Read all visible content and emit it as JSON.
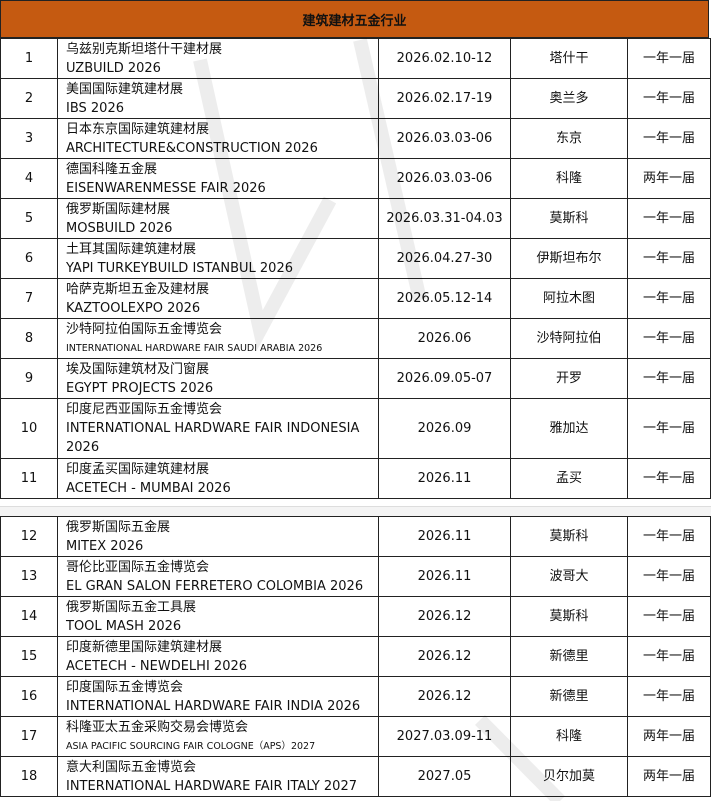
{
  "title": "建筑建材五金行业",
  "header_color": "#C55A11",
  "rows": [
    {
      "no": "1",
      "cn": "乌兹别克斯坦塔什干建材展",
      "en": "UZBUILD 2026",
      "date": "2026.02.10-12",
      "city": "塔什干",
      "freq": "一年一届"
    },
    {
      "no": "2",
      "cn": "美国国际建筑建材展",
      "en": "IBS 2026",
      "date": "2026.02.17-19",
      "city": "奥兰多",
      "freq": "一年一届"
    },
    {
      "no": "3",
      "cn": "日本东京国际建筑建材展",
      "en": "ARCHITECTURE&CONSTRUCTION 2026",
      "date": "2026.03.03-06",
      "city": "东京",
      "freq": "一年一届"
    },
    {
      "no": "4",
      "cn": "德国科隆五金展",
      "en": "EISENWARENMESSE FAIR 2026",
      "date": "2026.03.03-06",
      "city": "科隆",
      "freq": "两年一届"
    },
    {
      "no": "5",
      "cn": "俄罗斯国际建材展",
      "en": "MOSBUILD 2026",
      "date": "2026.03.31-04.03",
      "city": "莫斯科",
      "freq": "一年一届"
    },
    {
      "no": "6",
      "cn": "土耳其国际建筑建材展",
      "en": "YAPI TURKEYBUILD ISTANBUL 2026",
      "date": "2026.04.27-30",
      "city": "伊斯坦布尔",
      "freq": "一年一届"
    },
    {
      "no": "7",
      "cn": "哈萨克斯坦五金及建材展",
      "en": "KAZTOOLEXPO 2026",
      "date": "2026.05.12-14",
      "city": "阿拉木图",
      "freq": "一年一届"
    },
    {
      "no": "8",
      "cn": "沙特阿拉伯国际五金博览会",
      "en": "INTERNATIONAL HARDWARE FAIR SAUDI ARABIA 2026",
      "date": "2026.06",
      "city": "沙特阿拉伯",
      "freq": "一年一届"
    },
    {
      "no": "9",
      "cn": "埃及国际建筑材及门窗展",
      "en": "EGYPT PROJECTS 2026",
      "date": "2026.09.05-07",
      "city": "开罗",
      "freq": "一年一届"
    },
    {
      "no": "10",
      "cn": "印度尼西亚国际五金博览会",
      "en": "INTERNATIONAL HARDWARE FAIR INDONESIA 2026",
      "date": "2026.09",
      "city": "雅加达",
      "freq": "一年一届"
    },
    {
      "no": "11",
      "cn": "印度孟买国际建筑建材展",
      "en": "ACETECH - MUMBAI 2026",
      "date": "2026.11",
      "city": "孟买",
      "freq": "一年一届"
    },
    {
      "no": "12",
      "cn": "俄罗斯国际五金展",
      "en": "MITEX 2026",
      "date": "2026.11",
      "city": "莫斯科",
      "freq": "一年一届"
    },
    {
      "no": "13",
      "cn": "哥伦比亚国际五金博览会",
      "en": "EL GRAN SALON FERRETERO COLOMBIA 2026",
      "date": "2026.11",
      "city": "波哥大",
      "freq": "一年一届"
    },
    {
      "no": "14",
      "cn": "俄罗斯国际五金工具展",
      "en": "TOOL MASH 2026",
      "date": "2026.12",
      "city": "莫斯科",
      "freq": "一年一届"
    },
    {
      "no": "15",
      "cn": "印度新德里国际建筑建材展",
      "en": "ACETECH - NEWDELHI 2026",
      "date": "2026.12",
      "city": "新德里",
      "freq": "一年一届"
    },
    {
      "no": "16",
      "cn": "印度国际五金博览会",
      "en": "INTERNATIONAL HARDWARE FAIR INDIA 2026",
      "date": "2026.12",
      "city": "新德里",
      "freq": "一年一届"
    },
    {
      "no": "17",
      "cn": "科隆亚太五金采购交易会博览会",
      "en": "ASIA PACIFIC SOURCING FAIR COLOGNE（APS）2027",
      "date": "2027.03.09-11",
      "city": "科隆",
      "freq": "两年一届"
    },
    {
      "no": "18",
      "cn": "意大利国际五金博览会",
      "en": "INTERNATIONAL HARDWARE FAIR ITALY 2027",
      "date": "2027.05",
      "city": "贝尔加莫",
      "freq": "两年一届"
    }
  ]
}
